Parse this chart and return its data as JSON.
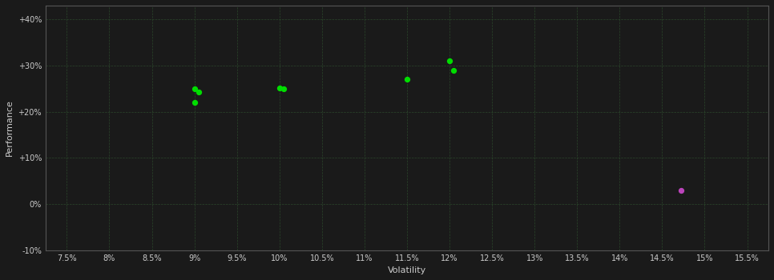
{
  "background_color": "#1a1a1a",
  "grid_color": "#2d4a2d",
  "axis_color": "#555555",
  "tick_color": "#cccccc",
  "label_color": "#cccccc",
  "green_points": [
    [
      9.0,
      25.0
    ],
    [
      9.05,
      24.2
    ],
    [
      9.0,
      22.0
    ],
    [
      10.0,
      25.2
    ],
    [
      10.05,
      25.0
    ],
    [
      11.5,
      27.0
    ],
    [
      12.0,
      31.0
    ],
    [
      12.05,
      29.0
    ]
  ],
  "magenta_points": [
    [
      14.72,
      3.0
    ]
  ],
  "green_color": "#00dd00",
  "magenta_color": "#bb44bb",
  "xlabel": "Volatility",
  "ylabel": "Performance",
  "xlim": [
    7.25,
    15.75
  ],
  "ylim": [
    -10,
    43
  ],
  "xticks": [
    7.5,
    8.0,
    8.5,
    9.0,
    9.5,
    10.0,
    10.5,
    11.0,
    11.5,
    12.0,
    12.5,
    13.0,
    13.5,
    14.0,
    14.5,
    15.0,
    15.5
  ],
  "yticks": [
    -10,
    0,
    10,
    20,
    30,
    40
  ],
  "ytick_labels": [
    "-10%",
    "0%",
    "+10%",
    "+20%",
    "+30%",
    "+40%"
  ],
  "marker_size": 18,
  "marker_style": "o"
}
